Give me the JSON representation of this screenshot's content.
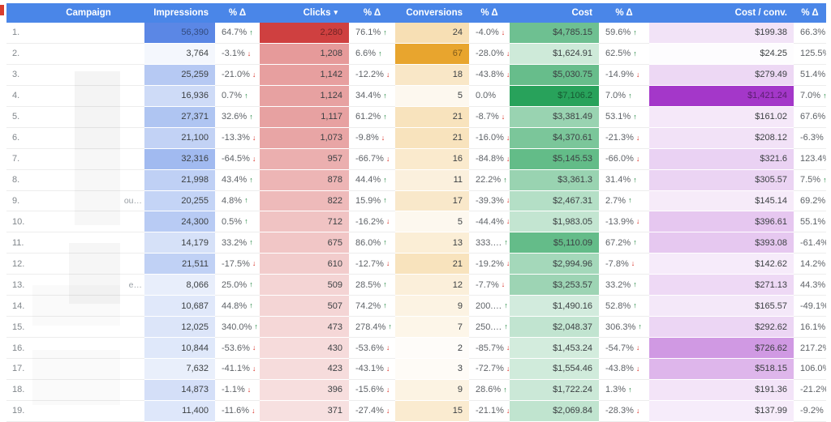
{
  "colors": {
    "header_bg": "#4a86e8",
    "delta_up": "#188038",
    "delta_down": "#d93025",
    "impressions_accent": "#5b87e5",
    "clicks_accent": "#cf4040",
    "conversions_accent": "#e8a52e",
    "cost_accent": "#28a25b",
    "cost_per_conv_accent": "#a437c9"
  },
  "icons": {
    "up_arrow": "↑",
    "down_arrow": "↓",
    "sort_desc": "▾"
  },
  "table": {
    "columns": [
      {
        "type": "index",
        "key": "index",
        "label": ""
      },
      {
        "type": "campaign",
        "key": "campaign",
        "label": "Campaign"
      },
      {
        "type": "metric",
        "key": "impressions",
        "label": "Impressions",
        "accent": "#5b87e5"
      },
      {
        "type": "delta",
        "key": "impressions_delta",
        "label": "% Δ"
      },
      {
        "type": "metric",
        "key": "clicks",
        "label": "Clicks",
        "accent": "#cf4040",
        "sort": "desc"
      },
      {
        "type": "delta",
        "key": "clicks_delta",
        "label": "% Δ"
      },
      {
        "type": "metric",
        "key": "conversions",
        "label": "Conversions",
        "accent": "#e8a52e"
      },
      {
        "type": "delta",
        "key": "conversions_delta",
        "label": "% Δ"
      },
      {
        "type": "metric",
        "key": "cost",
        "label": "Cost",
        "accent": "#28a25b"
      },
      {
        "type": "delta",
        "key": "cost_delta",
        "label": "% Δ"
      },
      {
        "type": "metric",
        "key": "cost_per_conv",
        "label": "Cost / conv.",
        "accent": "#a437c9"
      },
      {
        "type": "delta",
        "key": "cost_per_conv_delta",
        "label": "% Δ"
      }
    ],
    "rows": [
      {
        "index": "1.",
        "campaign": "",
        "impressions": "56,390",
        "impressions_delta": {
          "v": "64.7%",
          "dir": "up"
        },
        "clicks": "2,280",
        "clicks_delta": {
          "v": "76.1%",
          "dir": "up"
        },
        "conversions": "24",
        "conversions_delta": {
          "v": "-4.0%",
          "dir": "down"
        },
        "cost": "$4,785.15",
        "cost_delta": {
          "v": "59.6%",
          "dir": "up"
        },
        "cost_per_conv": "$199.38",
        "cost_per_conv_delta": {
          "v": "66.3%",
          "dir": "up"
        }
      },
      {
        "index": "2.",
        "campaign": "",
        "impressions": "3,764",
        "impressions_delta": {
          "v": "-3.1%",
          "dir": "down"
        },
        "clicks": "1,208",
        "clicks_delta": {
          "v": "6.6%",
          "dir": "up"
        },
        "conversions": "67",
        "conversions_delta": {
          "v": "-28.0%",
          "dir": "down"
        },
        "cost": "$1,624.91",
        "cost_delta": {
          "v": "62.5%",
          "dir": "up"
        },
        "cost_per_conv": "$24.25",
        "cost_per_conv_delta": {
          "v": "125.5%",
          "dir": "up"
        }
      },
      {
        "index": "3.",
        "campaign": "",
        "impressions": "25,259",
        "impressions_delta": {
          "v": "-21.0%",
          "dir": "down"
        },
        "clicks": "1,142",
        "clicks_delta": {
          "v": "-12.2%",
          "dir": "down"
        },
        "conversions": "18",
        "conversions_delta": {
          "v": "-43.8%",
          "dir": "down"
        },
        "cost": "$5,030.75",
        "cost_delta": {
          "v": "-14.9%",
          "dir": "down"
        },
        "cost_per_conv": "$279.49",
        "cost_per_conv_delta": {
          "v": "51.4%",
          "dir": "up"
        }
      },
      {
        "index": "4.",
        "campaign": "",
        "impressions": "16,936",
        "impressions_delta": {
          "v": "0.7%",
          "dir": "up"
        },
        "clicks": "1,124",
        "clicks_delta": {
          "v": "34.4%",
          "dir": "up"
        },
        "conversions": "5",
        "conversions_delta": {
          "v": "0.0%",
          "dir": "none"
        },
        "cost": "$7,106.2",
        "cost_delta": {
          "v": "7.0%",
          "dir": "up"
        },
        "cost_per_conv": "$1,421.24",
        "cost_per_conv_delta": {
          "v": "7.0%",
          "dir": "up"
        }
      },
      {
        "index": "5.",
        "campaign": "",
        "impressions": "27,371",
        "impressions_delta": {
          "v": "32.6%",
          "dir": "up"
        },
        "clicks": "1,117",
        "clicks_delta": {
          "v": "61.2%",
          "dir": "up"
        },
        "conversions": "21",
        "conversions_delta": {
          "v": "-8.7%",
          "dir": "down"
        },
        "cost": "$3,381.49",
        "cost_delta": {
          "v": "53.1%",
          "dir": "up"
        },
        "cost_per_conv": "$161.02",
        "cost_per_conv_delta": {
          "v": "67.6%",
          "dir": "up"
        }
      },
      {
        "index": "6.",
        "campaign": "",
        "impressions": "21,100",
        "impressions_delta": {
          "v": "-13.3%",
          "dir": "down"
        },
        "clicks": "1,073",
        "clicks_delta": {
          "v": "-9.8%",
          "dir": "down"
        },
        "conversions": "21",
        "conversions_delta": {
          "v": "-16.0%",
          "dir": "down"
        },
        "cost": "$4,370.61",
        "cost_delta": {
          "v": "-21.3%",
          "dir": "down"
        },
        "cost_per_conv": "$208.12",
        "cost_per_conv_delta": {
          "v": "-6.3%",
          "dir": "down"
        }
      },
      {
        "index": "7.",
        "campaign": "",
        "impressions": "32,316",
        "impressions_delta": {
          "v": "-64.5%",
          "dir": "down"
        },
        "clicks": "957",
        "clicks_delta": {
          "v": "-66.7%",
          "dir": "down"
        },
        "conversions": "16",
        "conversions_delta": {
          "v": "-84.8%",
          "dir": "down"
        },
        "cost": "$5,145.53",
        "cost_delta": {
          "v": "-66.0%",
          "dir": "down"
        },
        "cost_per_conv": "$321.6",
        "cost_per_conv_delta": {
          "v": "123.4%",
          "dir": "up"
        }
      },
      {
        "index": "8.",
        "campaign": "",
        "impressions": "21,998",
        "impressions_delta": {
          "v": "43.4%",
          "dir": "up"
        },
        "clicks": "878",
        "clicks_delta": {
          "v": "44.4%",
          "dir": "up"
        },
        "conversions": "11",
        "conversions_delta": {
          "v": "22.2%",
          "dir": "up"
        },
        "cost": "$3,361.3",
        "cost_delta": {
          "v": "31.4%",
          "dir": "up"
        },
        "cost_per_conv": "$305.57",
        "cost_per_conv_delta": {
          "v": "7.5%",
          "dir": "up"
        }
      },
      {
        "index": "9.",
        "campaign": "ou…",
        "impressions": "20,255",
        "impressions_delta": {
          "v": "4.8%",
          "dir": "up"
        },
        "clicks": "822",
        "clicks_delta": {
          "v": "15.9%",
          "dir": "up"
        },
        "conversions": "17",
        "conversions_delta": {
          "v": "-39.3%",
          "dir": "down"
        },
        "cost": "$2,467.31",
        "cost_delta": {
          "v": "2.7%",
          "dir": "up"
        },
        "cost_per_conv": "$145.14",
        "cost_per_conv_delta": {
          "v": "69.2%",
          "dir": "up"
        }
      },
      {
        "index": "10.",
        "campaign": "",
        "impressions": "24,300",
        "impressions_delta": {
          "v": "0.5%",
          "dir": "up"
        },
        "clicks": "712",
        "clicks_delta": {
          "v": "-16.2%",
          "dir": "down"
        },
        "conversions": "5",
        "conversions_delta": {
          "v": "-44.4%",
          "dir": "down"
        },
        "cost": "$1,983.05",
        "cost_delta": {
          "v": "-13.9%",
          "dir": "down"
        },
        "cost_per_conv": "$396.61",
        "cost_per_conv_delta": {
          "v": "55.1%",
          "dir": "up"
        }
      },
      {
        "index": "11.",
        "campaign": "",
        "impressions": "14,179",
        "impressions_delta": {
          "v": "33.2%",
          "dir": "up"
        },
        "clicks": "675",
        "clicks_delta": {
          "v": "86.0%",
          "dir": "up"
        },
        "conversions": "13",
        "conversions_delta": {
          "v": "333.…",
          "dir": "up"
        },
        "cost": "$5,110.09",
        "cost_delta": {
          "v": "67.2%",
          "dir": "up"
        },
        "cost_per_conv": "$393.08",
        "cost_per_conv_delta": {
          "v": "-61.4%",
          "dir": "down"
        }
      },
      {
        "index": "12.",
        "campaign": "",
        "impressions": "21,511",
        "impressions_delta": {
          "v": "-17.5%",
          "dir": "down"
        },
        "clicks": "610",
        "clicks_delta": {
          "v": "-12.7%",
          "dir": "down"
        },
        "conversions": "21",
        "conversions_delta": {
          "v": "-19.2%",
          "dir": "down"
        },
        "cost": "$2,994.96",
        "cost_delta": {
          "v": "-7.8%",
          "dir": "down"
        },
        "cost_per_conv": "$142.62",
        "cost_per_conv_delta": {
          "v": "14.2%",
          "dir": "up"
        }
      },
      {
        "index": "13.",
        "campaign": "e…",
        "impressions": "8,066",
        "impressions_delta": {
          "v": "25.0%",
          "dir": "up"
        },
        "clicks": "509",
        "clicks_delta": {
          "v": "28.5%",
          "dir": "up"
        },
        "conversions": "12",
        "conversions_delta": {
          "v": "-7.7%",
          "dir": "down"
        },
        "cost": "$3,253.57",
        "cost_delta": {
          "v": "33.2%",
          "dir": "up"
        },
        "cost_per_conv": "$271.13",
        "cost_per_conv_delta": {
          "v": "44.3%",
          "dir": "up"
        }
      },
      {
        "index": "14.",
        "campaign": "",
        "impressions": "10,687",
        "impressions_delta": {
          "v": "44.8%",
          "dir": "up"
        },
        "clicks": "507",
        "clicks_delta": {
          "v": "74.2%",
          "dir": "up"
        },
        "conversions": "9",
        "conversions_delta": {
          "v": "200.…",
          "dir": "up"
        },
        "cost": "$1,490.16",
        "cost_delta": {
          "v": "52.8%",
          "dir": "up"
        },
        "cost_per_conv": "$165.57",
        "cost_per_conv_delta": {
          "v": "-49.1%",
          "dir": "down"
        }
      },
      {
        "index": "15.",
        "campaign": "",
        "impressions": "12,025",
        "impressions_delta": {
          "v": "340.0%",
          "dir": "up"
        },
        "clicks": "473",
        "clicks_delta": {
          "v": "278.4%",
          "dir": "up"
        },
        "conversions": "7",
        "conversions_delta": {
          "v": "250.…",
          "dir": "up"
        },
        "cost": "$2,048.37",
        "cost_delta": {
          "v": "306.3%",
          "dir": "up"
        },
        "cost_per_conv": "$292.62",
        "cost_per_conv_delta": {
          "v": "16.1%",
          "dir": "up"
        }
      },
      {
        "index": "16.",
        "campaign": "",
        "impressions": "10,844",
        "impressions_delta": {
          "v": "-53.6%",
          "dir": "down"
        },
        "clicks": "430",
        "clicks_delta": {
          "v": "-53.6%",
          "dir": "down"
        },
        "conversions": "2",
        "conversions_delta": {
          "v": "-85.7%",
          "dir": "down"
        },
        "cost": "$1,453.24",
        "cost_delta": {
          "v": "-54.7%",
          "dir": "down"
        },
        "cost_per_conv": "$726.62",
        "cost_per_conv_delta": {
          "v": "217.2%",
          "dir": "up"
        }
      },
      {
        "index": "17.",
        "campaign": "",
        "impressions": "7,632",
        "impressions_delta": {
          "v": "-41.1%",
          "dir": "down"
        },
        "clicks": "423",
        "clicks_delta": {
          "v": "-43.1%",
          "dir": "down"
        },
        "conversions": "3",
        "conversions_delta": {
          "v": "-72.7%",
          "dir": "down"
        },
        "cost": "$1,554.46",
        "cost_delta": {
          "v": "-43.8%",
          "dir": "down"
        },
        "cost_per_conv": "$518.15",
        "cost_per_conv_delta": {
          "v": "106.0%",
          "dir": "up"
        }
      },
      {
        "index": "18.",
        "campaign": "",
        "impressions": "14,873",
        "impressions_delta": {
          "v": "-1.1%",
          "dir": "down"
        },
        "clicks": "396",
        "clicks_delta": {
          "v": "-15.6%",
          "dir": "down"
        },
        "conversions": "9",
        "conversions_delta": {
          "v": "28.6%",
          "dir": "up"
        },
        "cost": "$1,722.24",
        "cost_delta": {
          "v": "1.3%",
          "dir": "up"
        },
        "cost_per_conv": "$191.36",
        "cost_per_conv_delta": {
          "v": "-21.2%",
          "dir": "down"
        }
      },
      {
        "index": "19.",
        "campaign": "",
        "impressions": "11,400",
        "impressions_delta": {
          "v": "-11.6%",
          "dir": "down"
        },
        "clicks": "371",
        "clicks_delta": {
          "v": "-27.4%",
          "dir": "down"
        },
        "conversions": "15",
        "conversions_delta": {
          "v": "-21.1%",
          "dir": "down"
        },
        "cost": "$2,069.84",
        "cost_delta": {
          "v": "-28.3%",
          "dir": "down"
        },
        "cost_per_conv": "$137.99",
        "cost_per_conv_delta": {
          "v": "-9.2%",
          "dir": "down"
        }
      }
    ]
  }
}
